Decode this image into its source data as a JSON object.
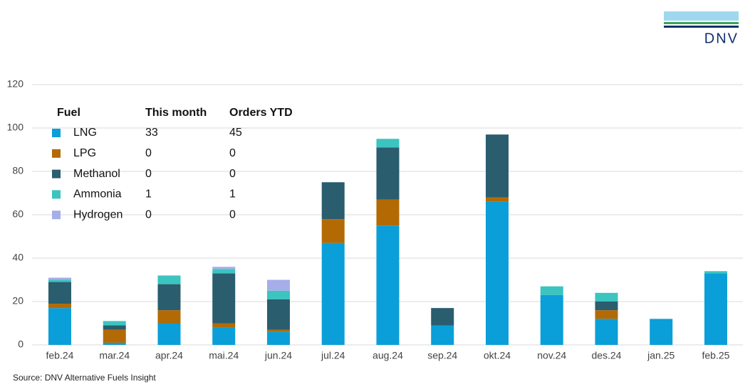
{
  "chart_data": {
    "type": "stacked_bar",
    "categories": [
      "feb.24",
      "mar.24",
      "apr.24",
      "mai.24",
      "jun.24",
      "jul.24",
      "aug.24",
      "sep.24",
      "okt.24",
      "nov.24",
      "des.24",
      "jan.25",
      "feb.25"
    ],
    "series": [
      {
        "name": "LNG",
        "color": "#0a9fd8",
        "values": [
          17,
          1,
          10,
          8,
          6,
          47,
          55,
          9,
          66,
          23,
          12,
          12,
          33
        ]
      },
      {
        "name": "LPG",
        "color": "#b36a05",
        "values": [
          2,
          6,
          6,
          2,
          1,
          11,
          12,
          0,
          2,
          0,
          4,
          0,
          0
        ]
      },
      {
        "name": "Methanol",
        "color": "#2a5d6e",
        "values": [
          10,
          2,
          12,
          23,
          14,
          17,
          24,
          8,
          29,
          0,
          4,
          0,
          0
        ]
      },
      {
        "name": "Ammonia",
        "color": "#3bc4c0",
        "values": [
          1,
          2,
          4,
          2,
          4,
          0,
          4,
          0,
          0,
          4,
          4,
          0,
          1
        ]
      },
      {
        "name": "Hydrogen",
        "color": "#a5aee8",
        "values": [
          1,
          0,
          0,
          1,
          5,
          0,
          0,
          0,
          0,
          0,
          0,
          0,
          0
        ]
      }
    ],
    "ylim": [
      0,
      120
    ],
    "yticks": [
      0,
      20,
      40,
      60,
      80,
      100,
      120
    ],
    "grid": true,
    "table": {
      "headers": [
        "Fuel",
        "This month",
        "Orders YTD"
      ],
      "this_month": [
        33,
        0,
        0,
        1,
        0
      ],
      "orders_ytd": [
        45,
        0,
        0,
        1,
        0
      ]
    },
    "source": "Source: DNV Alternative Fuels Insight",
    "logo": "DNV"
  }
}
